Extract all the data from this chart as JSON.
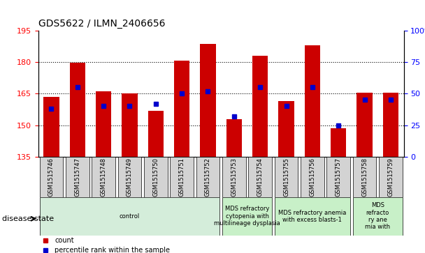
{
  "title": "GDS5622 / ILMN_2406656",
  "samples": [
    "GSM1515746",
    "GSM1515747",
    "GSM1515748",
    "GSM1515749",
    "GSM1515750",
    "GSM1515751",
    "GSM1515752",
    "GSM1515753",
    "GSM1515754",
    "GSM1515755",
    "GSM1515756",
    "GSM1515757",
    "GSM1515758",
    "GSM1515759"
  ],
  "counts": [
    163.5,
    179.5,
    166.0,
    165.0,
    157.0,
    180.5,
    188.5,
    153.0,
    183.0,
    161.5,
    188.0,
    148.5,
    165.5,
    165.5
  ],
  "percentile_ranks": [
    38,
    55,
    40,
    40,
    42,
    50,
    52,
    32,
    55,
    40,
    55,
    25,
    45,
    45
  ],
  "ylim_left": [
    135,
    195
  ],
  "ylim_right": [
    0,
    100
  ],
  "yticks_left": [
    135,
    150,
    165,
    180,
    195
  ],
  "yticks_right": [
    0,
    25,
    50,
    75,
    100
  ],
  "bar_color": "#cc0000",
  "percentile_color": "#0000cc",
  "grid_dotted_at": [
    150,
    165,
    180
  ],
  "disease_groups": [
    {
      "label": "control",
      "start": 0,
      "end": 7,
      "color": "#d4edda"
    },
    {
      "label": "MDS refractory\ncytopenia with\nmultilineage dysplasia",
      "start": 7,
      "end": 9,
      "color": "#c8f0c8"
    },
    {
      "label": "MDS refractory anemia\nwith excess blasts-1",
      "start": 9,
      "end": 12,
      "color": "#c8f0c8"
    },
    {
      "label": "MDS\nrefracto\nry ane\nmia with",
      "start": 12,
      "end": 14,
      "color": "#c8f0c8"
    }
  ],
  "disease_state_label": "disease state",
  "legend_items": [
    {
      "label": "count",
      "color": "#cc0000"
    },
    {
      "label": "percentile rank within the sample",
      "color": "#0000cc"
    }
  ]
}
